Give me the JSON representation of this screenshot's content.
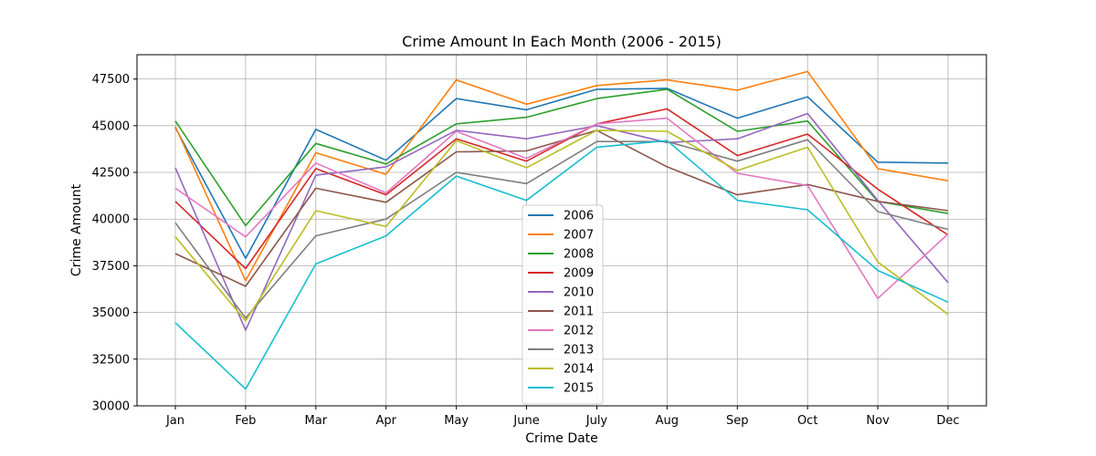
{
  "chart_data": {
    "type": "line",
    "title": "Crime Amount In Each Month (2006 - 2015)",
    "xlabel": "Crime Date",
    "ylabel": "Crime Amount",
    "categories": [
      "Jan",
      "Feb",
      "Mar",
      "Apr",
      "May",
      "June",
      "July",
      "Aug",
      "Sep",
      "Oct",
      "Nov",
      "Dec"
    ],
    "ylim": [
      30000,
      48800
    ],
    "yticks": [
      30000,
      32500,
      35000,
      37500,
      40000,
      42500,
      45000,
      47500
    ],
    "grid": true,
    "legend_position": "lower-center",
    "series": [
      {
        "name": "2006",
        "color": "#1f77b4",
        "values": [
          44900,
          37900,
          44800,
          43150,
          46450,
          45850,
          46950,
          47000,
          45400,
          46550,
          43050,
          43000
        ]
      },
      {
        "name": "2007",
        "color": "#ff7f0e",
        "values": [
          44950,
          36700,
          43550,
          42400,
          47450,
          46150,
          47150,
          47450,
          46900,
          47900,
          42700,
          42050
        ]
      },
      {
        "name": "2008",
        "color": "#2ca02c",
        "values": [
          45250,
          39650,
          44050,
          42950,
          45100,
          45450,
          46450,
          46950,
          44700,
          45250,
          40950,
          40300
        ]
      },
      {
        "name": "2009",
        "color": "#d62728",
        "values": [
          40950,
          37350,
          42700,
          41300,
          44300,
          43100,
          45100,
          45900,
          43400,
          44550,
          41600,
          39150
        ]
      },
      {
        "name": "2010",
        "color": "#9467bd",
        "values": [
          42750,
          34050,
          42350,
          42800,
          44750,
          44300,
          45000,
          44100,
          44300,
          45650,
          41000,
          36600
        ]
      },
      {
        "name": "2011",
        "color": "#8c564b",
        "values": [
          38150,
          36400,
          41650,
          40900,
          43600,
          43650,
          44750,
          42800,
          41300,
          41850,
          40950,
          40450
        ]
      },
      {
        "name": "2012",
        "color": "#e377c2",
        "values": [
          41650,
          39050,
          43000,
          41400,
          44700,
          43250,
          45100,
          45400,
          42450,
          41800,
          35750,
          39200
        ]
      },
      {
        "name": "2013",
        "color": "#7f7f7f",
        "values": [
          39800,
          34700,
          39100,
          40000,
          42500,
          41900,
          44150,
          44150,
          43100,
          44250,
          40400,
          39450
        ]
      },
      {
        "name": "2014",
        "color": "#bcbd22",
        "values": [
          39050,
          34550,
          40450,
          39600,
          44200,
          42750,
          44750,
          44700,
          42600,
          43850,
          37700,
          34900
        ]
      },
      {
        "name": "2015",
        "color": "#17becf",
        "values": [
          34450,
          30900,
          37600,
          39100,
          42300,
          41000,
          43850,
          44200,
          41000,
          40500,
          37250,
          35550
        ]
      }
    ]
  }
}
